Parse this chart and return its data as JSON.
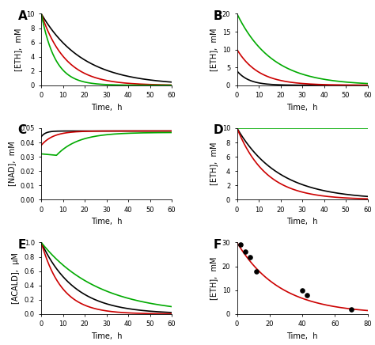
{
  "panels": {
    "A": {
      "label": "A",
      "ylabel": "[ETH],  mM",
      "xlabel": "Time,  h",
      "xlim": [
        0,
        60
      ],
      "ylim": [
        0,
        10
      ],
      "yticks": [
        0,
        2,
        4,
        6,
        8,
        10
      ],
      "xticks": [
        0,
        10,
        20,
        30,
        40,
        50,
        60
      ],
      "lines": [
        {
          "color": "#000000",
          "decay": 0.052,
          "init": 10.0
        },
        {
          "color": "#cc0000",
          "decay": 0.09,
          "init": 10.0
        },
        {
          "color": "#00aa00",
          "decay": 0.155,
          "init": 10.0
        }
      ]
    },
    "B": {
      "label": "B",
      "ylabel": "[ETH],  mM",
      "xlabel": "Time,  h",
      "xlim": [
        0,
        60
      ],
      "ylim": [
        0,
        20
      ],
      "yticks": [
        0,
        5,
        10,
        15,
        20
      ],
      "xticks": [
        0,
        10,
        20,
        30,
        40,
        50,
        60
      ],
      "lines": [
        {
          "color": "#000000",
          "decay": 0.18,
          "init": 4.0
        },
        {
          "color": "#cc0000",
          "decay": 0.1,
          "init": 10.0
        },
        {
          "color": "#00aa00",
          "decay": 0.062,
          "init": 20.0
        }
      ]
    },
    "C": {
      "label": "C",
      "ylabel": "[NAD],  mM",
      "xlabel": "Time,  h",
      "xlim": [
        0,
        60
      ],
      "ylim": [
        0,
        0.05
      ],
      "yticks": [
        0.0,
        0.01,
        0.02,
        0.03,
        0.04,
        0.05
      ],
      "xticks": [
        0,
        10,
        20,
        30,
        40,
        50,
        60
      ],
      "black_start": 0.044,
      "black_end": 0.048,
      "black_rate": 0.5,
      "red_start": 0.038,
      "red_end": 0.048,
      "red_rate": 0.18,
      "green_start": 0.032,
      "green_dip": 0.031,
      "green_dip_t": 7,
      "green_end": 0.047,
      "green_rise_rate": 0.1
    },
    "D": {
      "label": "D",
      "ylabel": "[ETH],  mM",
      "xlabel": "Time,  h",
      "xlim": [
        0,
        60
      ],
      "ylim": [
        0,
        10
      ],
      "yticks": [
        0,
        2,
        4,
        6,
        8,
        10
      ],
      "xticks": [
        0,
        10,
        20,
        30,
        40,
        50,
        60
      ],
      "lines": [
        {
          "color": "#000000",
          "decay": 0.052,
          "init": 10.0
        },
        {
          "color": "#cc0000",
          "decay": 0.075,
          "init": 10.0
        },
        {
          "color": "#00aa00",
          "flat": true,
          "init": 10.0
        }
      ]
    },
    "E": {
      "label": "E",
      "ylabel": "[ACALD],  μM",
      "xlabel": "Time,  h",
      "xlim": [
        0,
        60
      ],
      "ylim": [
        0,
        1.0
      ],
      "yticks": [
        0,
        0.2,
        0.4,
        0.6,
        0.8,
        1.0
      ],
      "xticks": [
        0,
        10,
        20,
        30,
        40,
        50,
        60
      ],
      "lines": [
        {
          "color": "#000000",
          "decay": 0.065,
          "init": 1.0
        },
        {
          "color": "#cc0000",
          "decay": 0.105,
          "init": 1.0
        },
        {
          "color": "#00aa00",
          "decay": 0.038,
          "init": 1.0
        }
      ]
    },
    "F": {
      "label": "F",
      "ylabel": "[ETH],  mM",
      "xlabel": "Time,  h",
      "xlim": [
        0,
        80
      ],
      "ylim": [
        0,
        30
      ],
      "yticks": [
        0,
        10,
        20,
        30
      ],
      "xticks": [
        0,
        20,
        40,
        60,
        80
      ],
      "line": {
        "color": "#cc0000",
        "decay": 0.038,
        "init": 30.0
      },
      "scatter_x": [
        2,
        5,
        8,
        12,
        40,
        43,
        70
      ],
      "scatter_y": [
        29,
        26,
        24,
        18,
        10,
        8,
        2
      ]
    }
  },
  "background": "#ffffff",
  "linewidth": 1.2
}
